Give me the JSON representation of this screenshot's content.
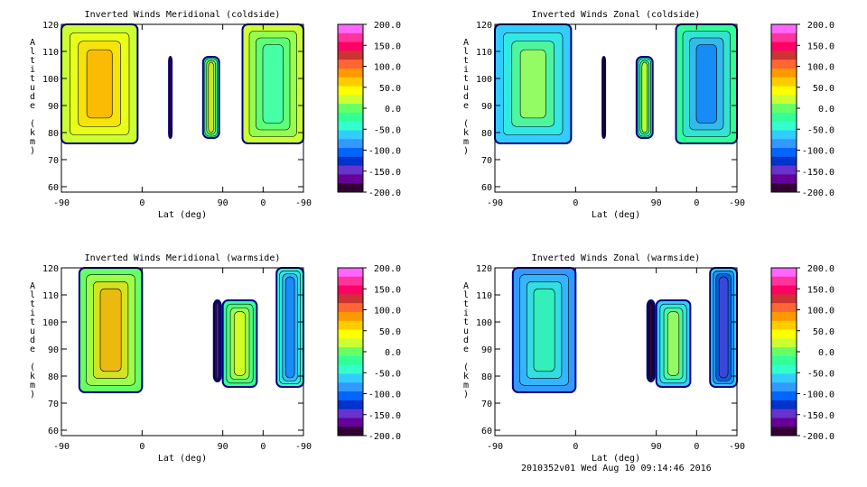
{
  "colorbar": {
    "labels": [
      "200.0",
      "150.0",
      "100.0",
      "50.0",
      "0.0",
      "-50.0",
      "-100.0",
      "-150.0",
      "-200.0"
    ],
    "colors": [
      "#ff66ff",
      "#ff3399",
      "#ff0066",
      "#cc3333",
      "#ff6633",
      "#ff9900",
      "#ffcc00",
      "#ffff00",
      "#ccff33",
      "#66ff66",
      "#33ff99",
      "#33ffcc",
      "#33ccff",
      "#3399ff",
      "#0066ff",
      "#0033cc",
      "#6633cc",
      "#660099",
      "#330033"
    ]
  },
  "chart_data": [
    {
      "type": "heatmap",
      "title": "Inverted Winds Meridional (coldside)",
      "xlabel": "Lat (deg)",
      "ylabel": "Altitude (km)",
      "x_ticks": [
        "-90",
        "0",
        "90",
        "0",
        "-90"
      ],
      "y_ticks": [
        "60",
        "70",
        "80",
        "90",
        "100",
        "110",
        "120"
      ],
      "ylim": [
        58,
        120
      ],
      "clim": [
        -200,
        200
      ],
      "regions": [
        {
          "x": [
            -90,
            -5
          ],
          "y": [
            76,
            120
          ],
          "mean": 15
        },
        {
          "x": [
            30,
            33
          ],
          "y": [
            78,
            108
          ],
          "mean": -200
        },
        {
          "x": [
            68,
            86
          ],
          "y": [
            78,
            108
          ],
          "mean": -20
        },
        {
          "x": [
            112,
            180
          ],
          "y": [
            76,
            120
          ],
          "mean": 30
        }
      ]
    },
    {
      "type": "heatmap",
      "title": "Inverted Winds Zonal (coldside)",
      "xlabel": "Lat (deg)",
      "ylabel": "Altitude (km)",
      "x_ticks": [
        "-90",
        "0",
        "90",
        "0",
        "-90"
      ],
      "y_ticks": [
        "60",
        "70",
        "80",
        "90",
        "100",
        "110",
        "120"
      ],
      "ylim": [
        58,
        120
      ],
      "clim": [
        -200,
        200
      ],
      "regions": [
        {
          "x": [
            -90,
            -5
          ],
          "y": [
            76,
            120
          ],
          "mean": -60
        },
        {
          "x": [
            30,
            33
          ],
          "y": [
            78,
            108
          ],
          "mean": -200
        },
        {
          "x": [
            68,
            86
          ],
          "y": [
            78,
            108
          ],
          "mean": -40
        },
        {
          "x": [
            112,
            180
          ],
          "y": [
            76,
            120
          ],
          "mean": -30
        }
      ]
    },
    {
      "type": "heatmap",
      "title": "Inverted Winds Meridional (warmside)",
      "xlabel": "Lat (deg)",
      "ylabel": "Altitude (km)",
      "x_ticks": [
        "-90",
        "0",
        "90",
        "0",
        "-90"
      ],
      "y_ticks": [
        "60",
        "70",
        "80",
        "90",
        "100",
        "110",
        "120"
      ],
      "ylim": [
        58,
        120
      ],
      "clim": [
        -200,
        200
      ],
      "regions": [
        {
          "x": [
            -70,
            0
          ],
          "y": [
            74,
            120
          ],
          "mean": 5
        },
        {
          "x": [
            80,
            88
          ],
          "y": [
            78,
            108
          ],
          "mean": -100
        },
        {
          "x": [
            90,
            128
          ],
          "y": [
            76,
            108
          ],
          "mean": -30
        },
        {
          "x": [
            150,
            180
          ],
          "y": [
            76,
            120
          ],
          "mean": -40
        }
      ]
    },
    {
      "type": "heatmap",
      "title": "Inverted Winds Zonal (warmside)",
      "xlabel": "Lat (deg)",
      "ylabel": "Altitude (km)",
      "x_ticks": [
        "-90",
        "0",
        "90",
        "0",
        "-90"
      ],
      "y_ticks": [
        "60",
        "70",
        "80",
        "90",
        "100",
        "110",
        "120"
      ],
      "ylim": [
        58,
        120
      ],
      "clim": [
        -200,
        200
      ],
      "regions": [
        {
          "x": [
            -70,
            0
          ],
          "y": [
            74,
            120
          ],
          "mean": -90
        },
        {
          "x": [
            80,
            88
          ],
          "y": [
            78,
            108
          ],
          "mean": -130
        },
        {
          "x": [
            90,
            128
          ],
          "y": [
            76,
            108
          ],
          "mean": -60
        },
        {
          "x": [
            150,
            180
          ],
          "y": [
            76,
            120
          ],
          "mean": -70
        }
      ]
    }
  ],
  "footer": "2010352v01 Wed Aug 10 09:14:46 2016"
}
